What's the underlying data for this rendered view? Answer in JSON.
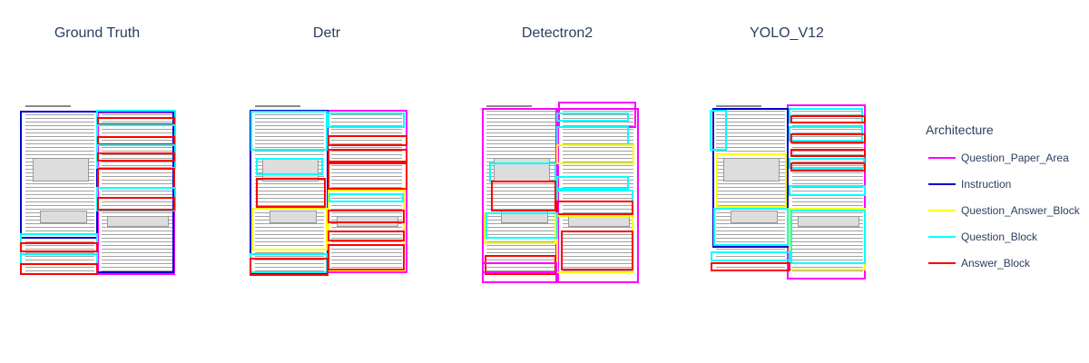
{
  "panels": [
    {
      "title": "Ground Truth"
    },
    {
      "title": "Detr"
    },
    {
      "title": "Detectron2"
    },
    {
      "title": "YOLO_V12"
    }
  ],
  "legend": {
    "title": "Architecture",
    "items": [
      {
        "label": "Question_Paper_Area",
        "color": "#ff00ff"
      },
      {
        "label": "Instruction",
        "color": "#0000cc"
      },
      {
        "label": "Question_Answer_Block",
        "color": "#ffff00"
      },
      {
        "label": "Question_Block",
        "color": "#00ffff"
      },
      {
        "label": "Answer_Block",
        "color": "#ff0000"
      }
    ]
  }
}
